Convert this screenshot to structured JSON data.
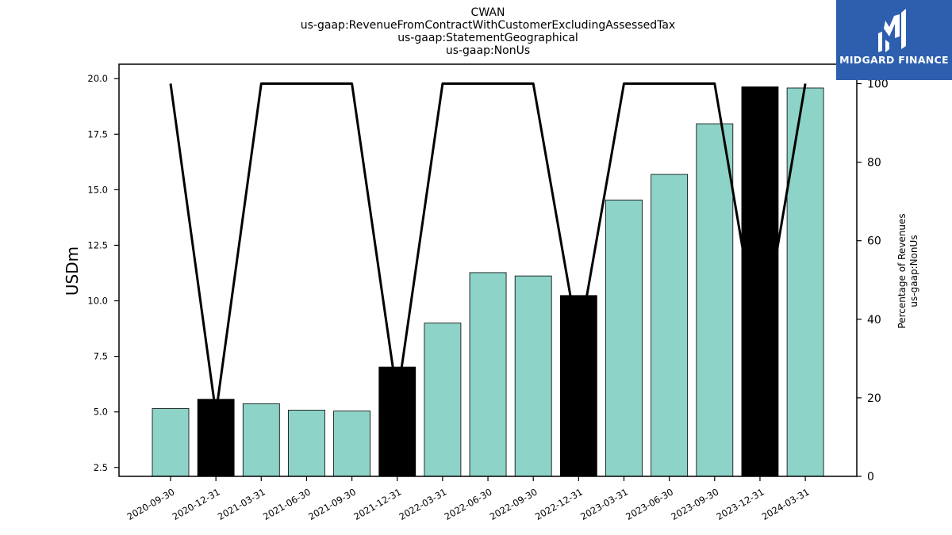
{
  "title": {
    "line1": "CWAN",
    "line2": "us-gaap:RevenueFromContractWithCustomerExcludingAssessedTax",
    "line3": "us-gaap:StatementGeographical",
    "line4": "us-gaap:NonUs"
  },
  "logo": {
    "text": "MIDGARD FINANCE",
    "background": "#2d5fae"
  },
  "colors": {
    "bar_normal": "#8dd3c7",
    "bar_highlight": "#000000",
    "line": "#000000"
  },
  "chart_data": {
    "type": "bar",
    "categories": [
      "2020-09-30",
      "2020-12-31",
      "2021-03-31",
      "2021-06-30",
      "2021-09-30",
      "2021-12-31",
      "2022-03-31",
      "2022-06-30",
      "2022-09-30",
      "2022-12-31",
      "2023-03-31",
      "2023-06-30",
      "2023-09-30",
      "2023-12-31",
      "2024-03-31"
    ],
    "series": [
      {
        "axis": "left",
        "values": [
          5.15,
          5.57,
          5.37,
          5.08,
          5.04,
          7.02,
          9.0,
          11.27,
          11.12,
          10.24,
          14.54,
          15.69,
          17.97,
          19.63,
          19.58
        ],
        "highlight": [
          false,
          true,
          false,
          false,
          false,
          true,
          false,
          false,
          false,
          true,
          false,
          false,
          false,
          true,
          false
        ]
      },
      {
        "axis": "right",
        "type": "line",
        "values": [
          100,
          16,
          100,
          100,
          100,
          20,
          100,
          100,
          100,
          34,
          100,
          100,
          100,
          32,
          100
        ]
      }
    ],
    "ylabel": "USDm",
    "y2label_line1": "Percentage of Revenues",
    "y2label_line2": "us-gaap:NonUs",
    "ylim": [
      2.1,
      20.65
    ],
    "y2lim": [
      0,
      100
    ],
    "yticks": [
      2.5,
      5.0,
      7.5,
      10.0,
      12.5,
      15.0,
      17.5,
      20.0
    ],
    "y2ticks": [
      0,
      20,
      40,
      60,
      80,
      100
    ],
    "grid": false,
    "legend": "none"
  }
}
